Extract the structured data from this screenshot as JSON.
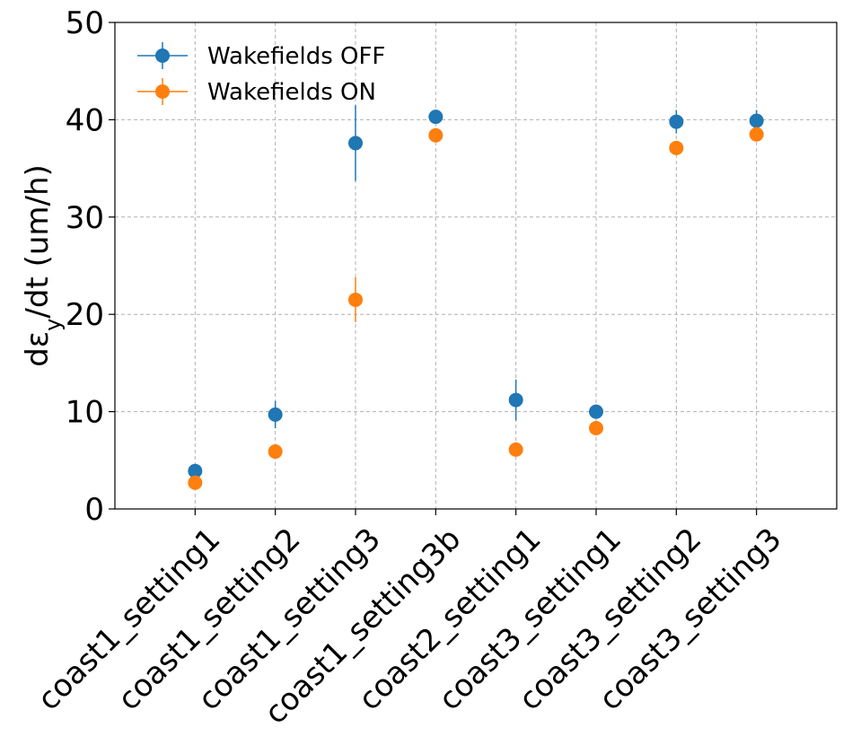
{
  "chart_data": {
    "type": "scatter",
    "title": "",
    "xlabel": "",
    "ylabel": {
      "prefix": "dε",
      "subscript": "y",
      "suffix": "/dt (um/h)"
    },
    "ylim": [
      0,
      50
    ],
    "yticks": [
      "0",
      "10",
      "20",
      "30",
      "40",
      "50"
    ],
    "grid": true,
    "legend_position": "top-left",
    "categories": [
      "coast1_setting1",
      "coast1_setting2",
      "coast1_setting3",
      "coast1_setting3b",
      "coast2_setting1",
      "coast3_setting1",
      "coast3_setting2",
      "coast3_setting3"
    ],
    "series": [
      {
        "name": "Wakefields OFF",
        "color": "#1f77b4",
        "values": [
          3.9,
          9.7,
          37.6,
          40.3,
          11.2,
          10.0,
          39.8,
          39.9
        ],
        "errors": [
          0.3,
          1.4,
          3.9,
          0.5,
          2.1,
          0.4,
          1.2,
          1.1
        ]
      },
      {
        "name": "Wakefields ON",
        "color": "#ff7f0e",
        "values": [
          2.7,
          5.9,
          21.5,
          38.4,
          6.1,
          8.3,
          37.1,
          38.5
        ],
        "errors": [
          0.3,
          0.5,
          2.3,
          0.5,
          0.4,
          0.3,
          0.5,
          0.4
        ]
      }
    ]
  }
}
